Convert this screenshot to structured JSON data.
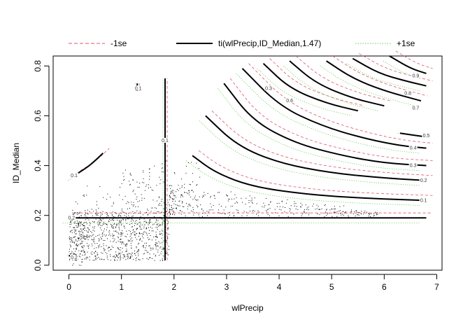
{
  "chart_data": {
    "type": "contour",
    "title": "",
    "xlabel": "wlPrecip",
    "ylabel": "ID_Median",
    "xlim": [
      -0.3,
      7.1
    ],
    "ylim": [
      -0.02,
      0.84
    ],
    "x_ticks": [
      0,
      1,
      2,
      3,
      4,
      5,
      6,
      7
    ],
    "y_ticks": [
      0.0,
      0.2,
      0.4,
      0.6,
      0.8
    ],
    "x_tick_labels": [
      "0",
      "1",
      "2",
      "3",
      "4",
      "5",
      "6",
      "7"
    ],
    "y_tick_labels": [
      "0.0",
      "0.2",
      "0.4",
      "0.6",
      "0.8"
    ],
    "grid": false,
    "legend_position": "top",
    "legend": [
      {
        "label": "-1se",
        "color": "#DF536B",
        "style": "dashed"
      },
      {
        "label": "ti(wlPrecip,ID_Median,1.47)",
        "color": "#000000",
        "style": "solid"
      },
      {
        "label": "+1se",
        "color": "#61D04F",
        "style": "dotted"
      }
    ],
    "colors": {
      "main": "#000000",
      "minus_se": "#DF536B",
      "plus_se": "#61D04F"
    },
    "series": [
      {
        "level": "0.1",
        "label_at": [
          6.75,
          0.26
        ],
        "points": [
          [
            2.35,
            0.44
          ],
          [
            2.8,
            0.37
          ],
          [
            3.5,
            0.315
          ],
          [
            4.5,
            0.285
          ],
          [
            5.5,
            0.27
          ],
          [
            6.8,
            0.26
          ]
        ]
      },
      {
        "level": "0.2",
        "label_at": [
          6.75,
          0.34
        ],
        "points": [
          [
            2.6,
            0.6
          ],
          [
            3.2,
            0.48
          ],
          [
            4.0,
            0.41
          ],
          [
            5.0,
            0.37
          ],
          [
            6.0,
            0.35
          ],
          [
            6.8,
            0.34
          ]
        ]
      },
      {
        "level": "0.3",
        "label_at": [
          6.55,
          0.4
        ],
        "points": [
          [
            2.95,
            0.73
          ],
          [
            3.5,
            0.58
          ],
          [
            4.3,
            0.49
          ],
          [
            5.2,
            0.44
          ],
          [
            6.0,
            0.41
          ],
          [
            6.8,
            0.4
          ]
        ]
      },
      {
        "level": "0.4",
        "label_at": [
          6.55,
          0.47
        ],
        "points": [
          [
            3.3,
            0.79
          ],
          [
            4.0,
            0.64
          ],
          [
            4.8,
            0.56
          ],
          [
            5.6,
            0.51
          ],
          [
            6.3,
            0.48
          ],
          [
            6.8,
            0.47
          ]
        ]
      },
      {
        "level": "0.5",
        "label_at": [
          6.8,
          0.52
        ],
        "points": [
          [
            6.3,
            0.53
          ],
          [
            6.8,
            0.515
          ]
        ]
      },
      {
        "level": "0.3",
        "label_at": [
          3.8,
          0.71
        ],
        "points": [
          [
            3.7,
            0.81
          ],
          [
            4.2,
            0.71
          ],
          [
            4.9,
            0.65
          ],
          [
            5.5,
            0.62
          ]
        ]
      },
      {
        "level": "0.6",
        "label_at": [
          4.2,
          0.66
        ],
        "points": [
          [
            4.2,
            0.82
          ],
          [
            4.7,
            0.73
          ],
          [
            5.4,
            0.67
          ],
          [
            6.0,
            0.64
          ]
        ]
      },
      {
        "level": "0.7",
        "label_at": [
          6.6,
          0.63
        ],
        "points": [
          [
            4.9,
            0.82
          ],
          [
            5.4,
            0.75
          ],
          [
            6.0,
            0.7
          ],
          [
            6.7,
            0.66
          ]
        ]
      },
      {
        "level": "0.8",
        "label_at": [
          6.45,
          0.69
        ],
        "points": [
          [
            5.4,
            0.83
          ],
          [
            5.9,
            0.77
          ],
          [
            6.4,
            0.74
          ],
          [
            6.8,
            0.72
          ]
        ]
      },
      {
        "level": "0.9",
        "label_at": [
          6.6,
          0.76
        ],
        "points": [
          [
            6.1,
            0.84
          ],
          [
            6.5,
            0.79
          ],
          [
            6.8,
            0.77
          ]
        ]
      },
      {
        "level": "0.1",
        "label_at": [
          0.1,
          0.36
        ],
        "points": [
          [
            0.1,
            0.36
          ],
          [
            0.4,
            0.4
          ],
          [
            0.65,
            0.45
          ]
        ]
      },
      {
        "level": "0.1",
        "label_at": [
          1.32,
          0.71
        ],
        "points": [
          [
            1.3,
            0.7
          ],
          [
            1.3,
            0.73
          ]
        ]
      },
      {
        "level": "0.2",
        "label_at": [
          0.05,
          0.19
        ],
        "points": [
          [
            0.0,
            0.19
          ],
          [
            1.9,
            0.19
          ],
          [
            6.8,
            0.19
          ]
        ]
      },
      {
        "level": "0.1",
        "label_at": [
          1.83,
          0.5
        ],
        "points": [
          [
            1.83,
            0.02
          ],
          [
            1.83,
            0.75
          ]
        ]
      },
      {
        "level": "0.2",
        "label_at": [
          0.1,
          0.03
        ],
        "points": [
          [
            0.0,
            0.04
          ],
          [
            0.15,
            0.02
          ]
        ]
      }
    ],
    "scatter_note_points": [
      [
        0.1,
        0.12
      ],
      [
        0.2,
        0.1
      ],
      [
        0.3,
        0.15
      ],
      [
        0.4,
        0.08
      ],
      [
        0.5,
        0.13
      ],
      [
        0.6,
        0.16
      ],
      [
        0.7,
        0.11
      ],
      [
        0.8,
        0.14
      ],
      [
        0.9,
        0.09
      ],
      [
        1.0,
        0.17
      ],
      [
        1.1,
        0.12
      ],
      [
        1.2,
        0.15
      ],
      [
        1.3,
        0.1
      ],
      [
        1.4,
        0.18
      ],
      [
        1.5,
        0.13
      ],
      [
        1.6,
        0.16
      ],
      [
        1.7,
        0.11
      ],
      [
        2.0,
        0.24
      ],
      [
        2.2,
        0.21
      ],
      [
        2.4,
        0.26
      ],
      [
        2.6,
        0.23
      ],
      [
        2.8,
        0.22
      ],
      [
        3.0,
        0.25
      ],
      [
        3.2,
        0.21
      ],
      [
        3.5,
        0.23
      ],
      [
        3.8,
        0.22
      ],
      [
        4.1,
        0.24
      ],
      [
        4.5,
        0.21
      ],
      [
        4.9,
        0.22
      ],
      [
        5.3,
        0.21
      ],
      [
        1.5,
        0.25
      ],
      [
        1.2,
        0.28
      ],
      [
        0.8,
        0.22
      ]
    ]
  }
}
